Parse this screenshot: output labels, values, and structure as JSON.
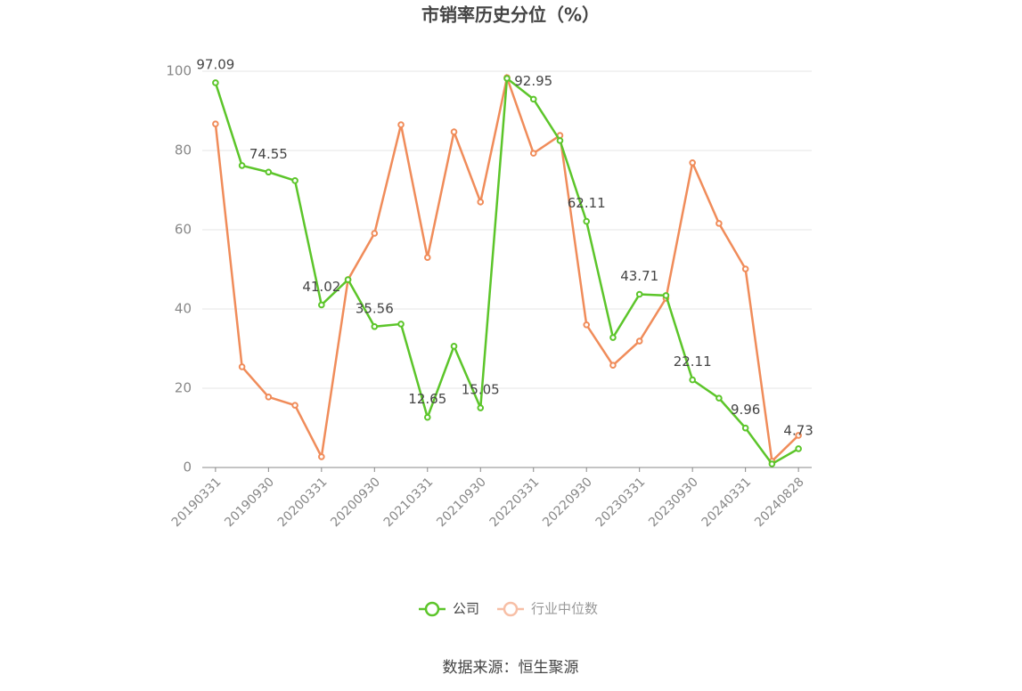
{
  "chart_data": {
    "type": "line",
    "title": "市销率历史分位（%）",
    "source": "数据来源：恒生聚源",
    "categories": [
      "20190331",
      null,
      "20190930",
      null,
      "20200331",
      null,
      "20200930",
      null,
      "20210331",
      null,
      "20210930",
      null,
      "20220331",
      null,
      "20220930",
      null,
      "20230331",
      null,
      "20230930",
      null,
      "20240331",
      null,
      "20240828"
    ],
    "series": [
      {
        "name": "公司",
        "color": "#5cc52a",
        "values": [
          97.09,
          76.2,
          74.55,
          72.4,
          41.02,
          47.4,
          35.56,
          36.2,
          12.65,
          30.6,
          15.05,
          98.2,
          92.95,
          82.5,
          62.11,
          32.8,
          43.71,
          43.4,
          22.11,
          17.5,
          9.96,
          0.9,
          4.73
        ],
        "value_labels": [
          "97.09",
          null,
          "74.55",
          null,
          "41.02",
          null,
          "35.56",
          null,
          "12.65",
          null,
          "15.05",
          null,
          "92.95",
          null,
          "62.11",
          null,
          "43.71",
          null,
          "22.11",
          null,
          "9.96",
          null,
          "4.73"
        ]
      },
      {
        "name": "行业中位数",
        "color": "#f08c5a",
        "values": [
          86.7,
          25.4,
          17.8,
          15.7,
          2.7,
          47.4,
          59.1,
          86.5,
          53.0,
          84.7,
          67.0,
          98.4,
          79.3,
          83.8,
          36.0,
          25.8,
          31.9,
          42.7,
          76.9,
          61.6,
          50.1,
          1.6,
          8.1
        ]
      }
    ],
    "ylim": [
      0,
      100
    ],
    "yticks": [
      0,
      20,
      40,
      60,
      80,
      100
    ],
    "grid": true
  }
}
